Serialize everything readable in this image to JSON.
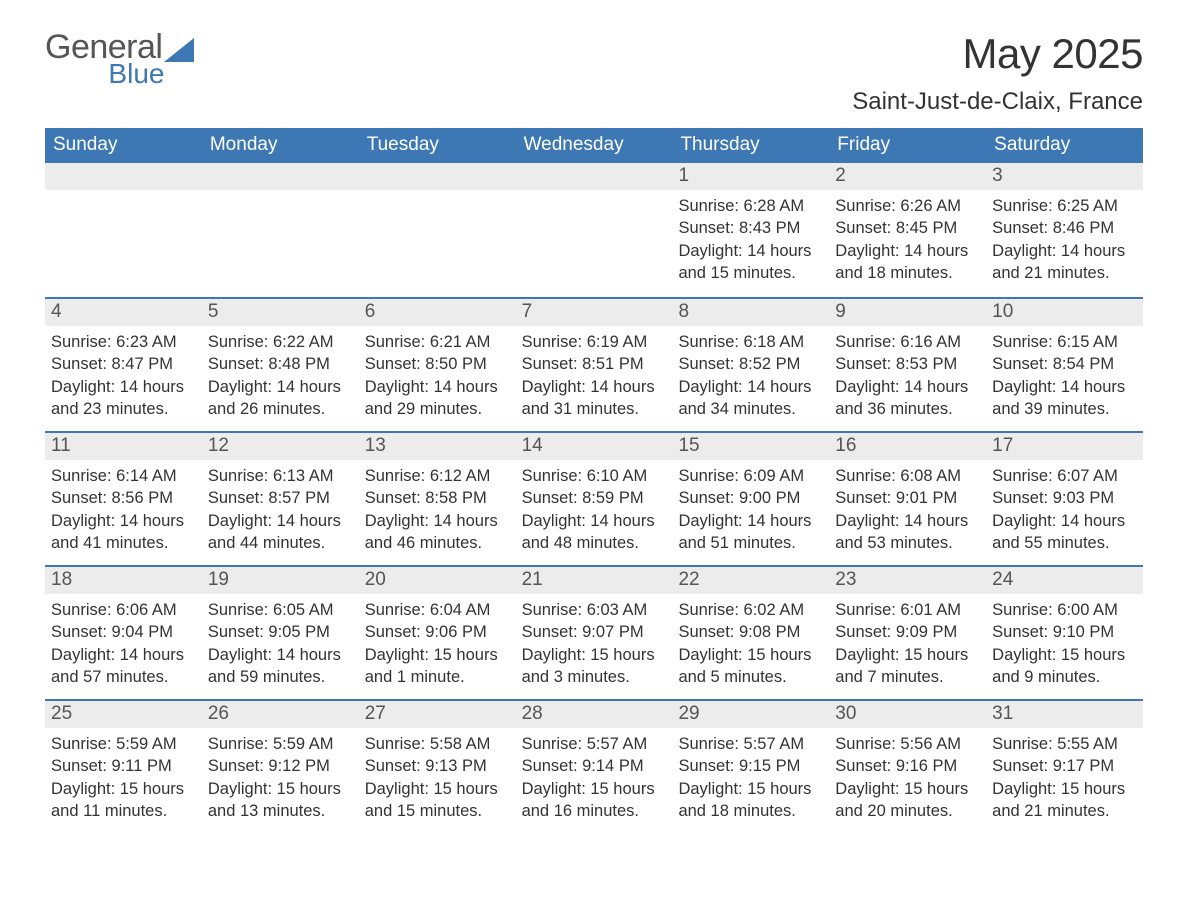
{
  "logo": {
    "line1": "General",
    "line2": "Blue",
    "icon_color": "#3d78b4"
  },
  "title": "May 2025",
  "location": "Saint-Just-de-Claix, France",
  "colors": {
    "header_bg": "#3d78b4",
    "daynum_bg": "#ececec",
    "text": "#333333",
    "logo_gray": "#555555"
  },
  "weekdays": [
    "Sunday",
    "Monday",
    "Tuesday",
    "Wednesday",
    "Thursday",
    "Friday",
    "Saturday"
  ],
  "labels": {
    "sunrise": "Sunrise: ",
    "sunset": "Sunset: ",
    "daylight": "Daylight: "
  },
  "weeks": [
    [
      {
        "n": "",
        "empty": true
      },
      {
        "n": "",
        "empty": true
      },
      {
        "n": "",
        "empty": true
      },
      {
        "n": "",
        "empty": true
      },
      {
        "n": "1",
        "sr": "6:28 AM",
        "ss": "8:43 PM",
        "d1": "14 hours",
        "d2": "and 15 minutes."
      },
      {
        "n": "2",
        "sr": "6:26 AM",
        "ss": "8:45 PM",
        "d1": "14 hours",
        "d2": "and 18 minutes."
      },
      {
        "n": "3",
        "sr": "6:25 AM",
        "ss": "8:46 PM",
        "d1": "14 hours",
        "d2": "and 21 minutes."
      }
    ],
    [
      {
        "n": "4",
        "sr": "6:23 AM",
        "ss": "8:47 PM",
        "d1": "14 hours",
        "d2": "and 23 minutes."
      },
      {
        "n": "5",
        "sr": "6:22 AM",
        "ss": "8:48 PM",
        "d1": "14 hours",
        "d2": "and 26 minutes."
      },
      {
        "n": "6",
        "sr": "6:21 AM",
        "ss": "8:50 PM",
        "d1": "14 hours",
        "d2": "and 29 minutes."
      },
      {
        "n": "7",
        "sr": "6:19 AM",
        "ss": "8:51 PM",
        "d1": "14 hours",
        "d2": "and 31 minutes."
      },
      {
        "n": "8",
        "sr": "6:18 AM",
        "ss": "8:52 PM",
        "d1": "14 hours",
        "d2": "and 34 minutes."
      },
      {
        "n": "9",
        "sr": "6:16 AM",
        "ss": "8:53 PM",
        "d1": "14 hours",
        "d2": "and 36 minutes."
      },
      {
        "n": "10",
        "sr": "6:15 AM",
        "ss": "8:54 PM",
        "d1": "14 hours",
        "d2": "and 39 minutes."
      }
    ],
    [
      {
        "n": "11",
        "sr": "6:14 AM",
        "ss": "8:56 PM",
        "d1": "14 hours",
        "d2": "and 41 minutes."
      },
      {
        "n": "12",
        "sr": "6:13 AM",
        "ss": "8:57 PM",
        "d1": "14 hours",
        "d2": "and 44 minutes."
      },
      {
        "n": "13",
        "sr": "6:12 AM",
        "ss": "8:58 PM",
        "d1": "14 hours",
        "d2": "and 46 minutes."
      },
      {
        "n": "14",
        "sr": "6:10 AM",
        "ss": "8:59 PM",
        "d1": "14 hours",
        "d2": "and 48 minutes."
      },
      {
        "n": "15",
        "sr": "6:09 AM",
        "ss": "9:00 PM",
        "d1": "14 hours",
        "d2": "and 51 minutes."
      },
      {
        "n": "16",
        "sr": "6:08 AM",
        "ss": "9:01 PM",
        "d1": "14 hours",
        "d2": "and 53 minutes."
      },
      {
        "n": "17",
        "sr": "6:07 AM",
        "ss": "9:03 PM",
        "d1": "14 hours",
        "d2": "and 55 minutes."
      }
    ],
    [
      {
        "n": "18",
        "sr": "6:06 AM",
        "ss": "9:04 PM",
        "d1": "14 hours",
        "d2": "and 57 minutes."
      },
      {
        "n": "19",
        "sr": "6:05 AM",
        "ss": "9:05 PM",
        "d1": "14 hours",
        "d2": "and 59 minutes."
      },
      {
        "n": "20",
        "sr": "6:04 AM",
        "ss": "9:06 PM",
        "d1": "15 hours",
        "d2": "and 1 minute."
      },
      {
        "n": "21",
        "sr": "6:03 AM",
        "ss": "9:07 PM",
        "d1": "15 hours",
        "d2": "and 3 minutes."
      },
      {
        "n": "22",
        "sr": "6:02 AM",
        "ss": "9:08 PM",
        "d1": "15 hours",
        "d2": "and 5 minutes."
      },
      {
        "n": "23",
        "sr": "6:01 AM",
        "ss": "9:09 PM",
        "d1": "15 hours",
        "d2": "and 7 minutes."
      },
      {
        "n": "24",
        "sr": "6:00 AM",
        "ss": "9:10 PM",
        "d1": "15 hours",
        "d2": "and 9 minutes."
      }
    ],
    [
      {
        "n": "25",
        "sr": "5:59 AM",
        "ss": "9:11 PM",
        "d1": "15 hours",
        "d2": "and 11 minutes."
      },
      {
        "n": "26",
        "sr": "5:59 AM",
        "ss": "9:12 PM",
        "d1": "15 hours",
        "d2": "and 13 minutes."
      },
      {
        "n": "27",
        "sr": "5:58 AM",
        "ss": "9:13 PM",
        "d1": "15 hours",
        "d2": "and 15 minutes."
      },
      {
        "n": "28",
        "sr": "5:57 AM",
        "ss": "9:14 PM",
        "d1": "15 hours",
        "d2": "and 16 minutes."
      },
      {
        "n": "29",
        "sr": "5:57 AM",
        "ss": "9:15 PM",
        "d1": "15 hours",
        "d2": "and 18 minutes."
      },
      {
        "n": "30",
        "sr": "5:56 AM",
        "ss": "9:16 PM",
        "d1": "15 hours",
        "d2": "and 20 minutes."
      },
      {
        "n": "31",
        "sr": "5:55 AM",
        "ss": "9:17 PM",
        "d1": "15 hours",
        "d2": "and 21 minutes."
      }
    ]
  ]
}
